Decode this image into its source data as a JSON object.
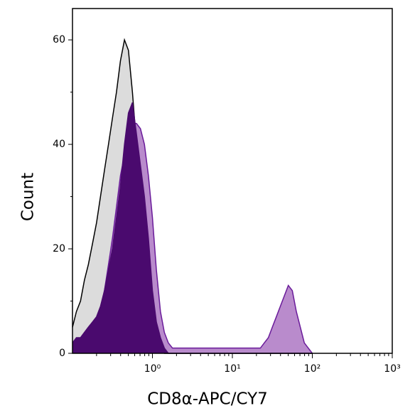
{
  "chart_data": {
    "type": "histogram-overlay",
    "xlabel": "CD8α-APC/CY7",
    "ylabel": "Count",
    "xscale": "log",
    "xlim": [
      0.1,
      1000
    ],
    "ylim": [
      0,
      66
    ],
    "xticks": [
      {
        "value": 1,
        "label": "10⁰"
      },
      {
        "value": 10,
        "label": "10¹"
      },
      {
        "value": 100,
        "label": "10²"
      },
      {
        "value": 1000,
        "label": "10³"
      }
    ],
    "xminorticks": [
      0.2,
      0.3,
      0.4,
      0.5,
      0.6,
      0.7,
      0.8,
      0.9,
      2,
      3,
      4,
      5,
      6,
      7,
      8,
      9,
      20,
      30,
      40,
      50,
      60,
      70,
      80,
      90,
      200,
      300,
      400,
      500,
      600,
      700,
      800,
      900
    ],
    "yticks": [
      0,
      20,
      40,
      60
    ],
    "yminorticks": [
      10,
      30,
      50
    ],
    "x": [
      0.1,
      0.112,
      0.126,
      0.141,
      0.158,
      0.178,
      0.2,
      0.224,
      0.251,
      0.282,
      0.316,
      0.355,
      0.398,
      0.447,
      0.501,
      0.562,
      0.631,
      0.708,
      0.794,
      0.891,
      1,
      1.12,
      1.26,
      1.41,
      1.58,
      1.78,
      2,
      2.24,
      2.51,
      2.82,
      3.16,
      3.55,
      3.98,
      4.47,
      5.01,
      5.62,
      6.31,
      7.08,
      7.94,
      8.91,
      10,
      11.2,
      12.6,
      14.1,
      15.8,
      17.8,
      20,
      22.4,
      25.1,
      28.2,
      31.6,
      35.5,
      39.8,
      44.7,
      50.1,
      56.2,
      63.1,
      70.8,
      79.4,
      89.1,
      100
    ],
    "series": [
      {
        "color": "#000000",
        "fill": "#dcdcdc",
        "values": [
          5,
          8,
          10,
          14,
          17,
          21,
          25,
          30,
          35,
          40,
          45,
          50,
          56,
          60,
          58,
          50,
          40,
          30,
          20,
          12,
          6,
          3,
          1,
          0,
          0,
          0,
          0,
          0,
          0,
          0,
          0,
          0,
          0,
          0,
          0,
          0,
          0,
          0,
          0,
          0,
          0,
          0,
          0,
          0,
          0,
          0,
          0,
          0,
          0,
          0,
          0,
          0,
          0,
          0,
          0,
          0,
          0,
          0,
          0,
          0,
          0
        ]
      },
      {
        "color": "#6a1b9a",
        "fill": "#b98bcc",
        "values": [
          1,
          1,
          2,
          2,
          3,
          4,
          5,
          8,
          12,
          17,
          22,
          28,
          34,
          38,
          42,
          44,
          44,
          43,
          40,
          34,
          26,
          16,
          8,
          4,
          2,
          1,
          1,
          1,
          1,
          1,
          1,
          1,
          1,
          1,
          1,
          1,
          1,
          1,
          1,
          1,
          1,
          1,
          1,
          1,
          1,
          1,
          1,
          1,
          2,
          3,
          5,
          7,
          9,
          11,
          13,
          12,
          8,
          5,
          2,
          1,
          0
        ]
      },
      {
        "color": "#4a0a6e",
        "fill": "#4a0a6e",
        "values": [
          2,
          3,
          3,
          4,
          5,
          6,
          7,
          9,
          12,
          16,
          20,
          26,
          32,
          40,
          46,
          48,
          42,
          36,
          30,
          22,
          12,
          6,
          3,
          1,
          0,
          0,
          0,
          0,
          0,
          0,
          0,
          0,
          0,
          0,
          0,
          0,
          0,
          0,
          0,
          0,
          0,
          0,
          0,
          0,
          0,
          0,
          0,
          0,
          0,
          0,
          0,
          0,
          0,
          0,
          0,
          0,
          0,
          0,
          0,
          0,
          0
        ]
      }
    ]
  }
}
